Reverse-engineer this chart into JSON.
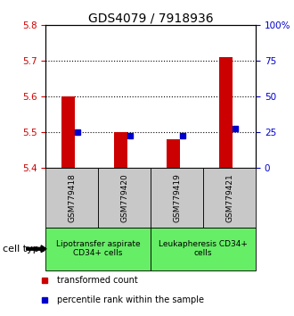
{
  "title": "GDS4079 / 7918936",
  "samples": [
    "GSM779418",
    "GSM779420",
    "GSM779419",
    "GSM779421"
  ],
  "red_values": [
    5.6,
    5.5,
    5.48,
    5.71
  ],
  "blue_values": [
    5.5,
    5.49,
    5.49,
    5.51
  ],
  "ylim": [
    5.4,
    5.8
  ],
  "yticks": [
    5.4,
    5.5,
    5.6,
    5.7,
    5.8
  ],
  "y2ticks": [
    0,
    25,
    50,
    75,
    100
  ],
  "y2labels": [
    "0",
    "25",
    "50",
    "75",
    "100%"
  ],
  "dotted_lines": [
    5.5,
    5.6,
    5.7
  ],
  "bar_base": 5.4,
  "red_color": "#cc0000",
  "blue_color": "#0000cc",
  "sample_box_color": "#c8c8c8",
  "group1_label": "Lipotransfer aspirate\nCD34+ cells",
  "group2_label": "Leukapheresis CD34+\ncells",
  "group1_color": "#c8c8c8",
  "group2_color": "#66ee66",
  "group1_samples": [
    0,
    1
  ],
  "group2_samples": [
    2,
    3
  ],
  "cell_type_label": "cell type",
  "legend_red": "transformed count",
  "legend_blue": "percentile rank within the sample",
  "title_fontsize": 10,
  "tick_fontsize": 7.5,
  "sample_fontsize": 6.5,
  "group_fontsize": 6.5,
  "legend_fontsize": 7,
  "cell_type_fontsize": 8
}
